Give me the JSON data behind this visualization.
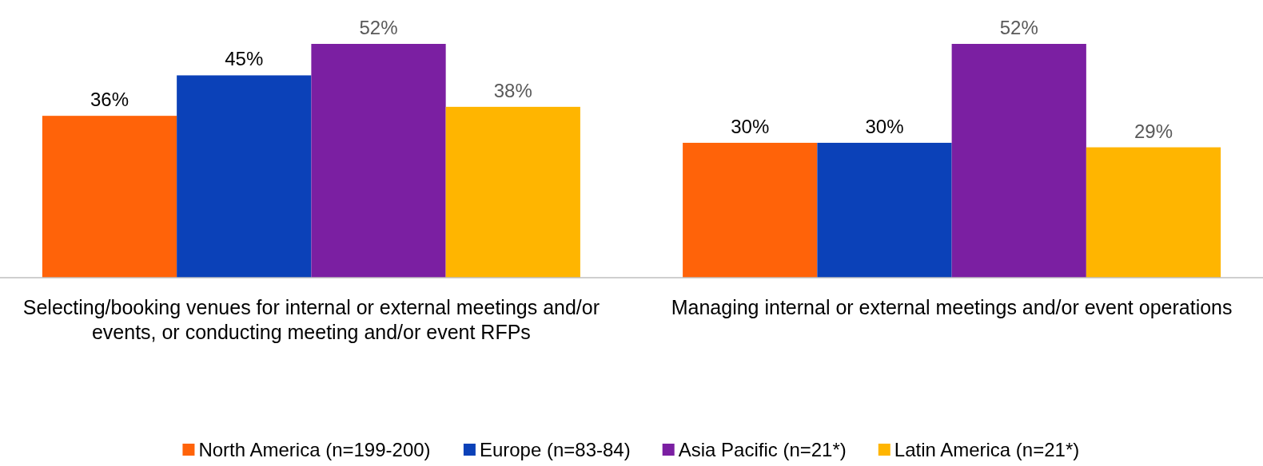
{
  "chart_data": {
    "type": "bar",
    "categories": [
      "Selecting/booking venues for internal or external meetings and/or events, or conducting meeting and/or event RFPs",
      "Managing internal or external meetings and/or event operations"
    ],
    "series": [
      {
        "name": "North America (n=199-200)",
        "color": "#ff6309",
        "values": [
          36,
          30
        ],
        "value_labels": [
          "36%",
          "30%"
        ]
      },
      {
        "name": "Europe (n=83-84)",
        "color": "#0b41b8",
        "values": [
          45,
          30
        ],
        "value_labels": [
          "45%",
          "30%"
        ]
      },
      {
        "name": "Asia Pacific (n=21*)",
        "color": "#7b1fa2",
        "values": [
          52,
          52
        ],
        "value_labels": [
          "52%",
          "52%"
        ]
      },
      {
        "name": "Latin America (n=21*)",
        "color": "#ffb500",
        "values": [
          38,
          29
        ],
        "value_labels": [
          "38%",
          "29%"
        ]
      }
    ],
    "legend": "bottom"
  }
}
